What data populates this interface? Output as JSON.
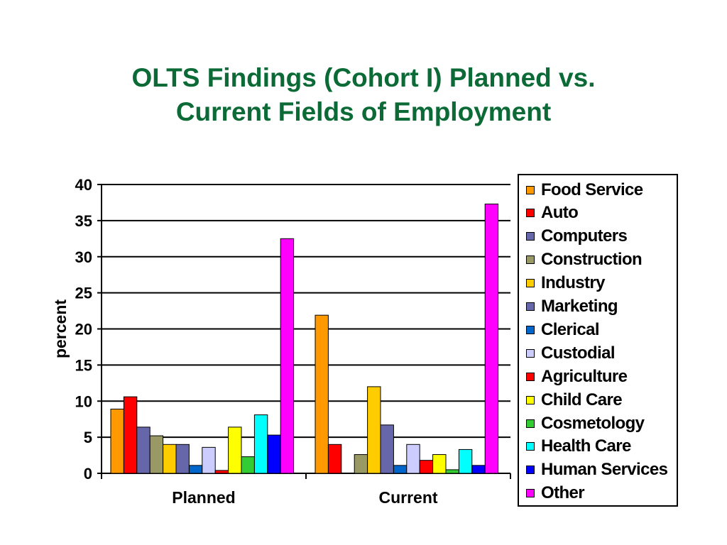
{
  "title": {
    "line1": "OLTS Findings (Cohort I) Planned vs.",
    "line2": "Current Fields of Employment"
  },
  "chart_data": {
    "type": "bar",
    "ylabel": "percent",
    "xlabel": "",
    "ylim": [
      0,
      40
    ],
    "yticks": [
      0,
      5,
      10,
      15,
      20,
      25,
      30,
      35,
      40
    ],
    "grid": true,
    "legend_position": "right",
    "categories": [
      "Planned",
      "Current"
    ],
    "series": [
      {
        "name": "Food Service",
        "color": "#ff9900",
        "values": [
          8.9,
          21.9
        ]
      },
      {
        "name": "Auto",
        "color": "#ff0000",
        "values": [
          10.6,
          4.0
        ]
      },
      {
        "name": "Computers",
        "color": "#6666aa",
        "values": [
          6.4,
          0
        ]
      },
      {
        "name": "Construction",
        "color": "#999966",
        "values": [
          5.2,
          2.6
        ]
      },
      {
        "name": "Industry",
        "color": "#ffcc00",
        "values": [
          4.0,
          12.0
        ]
      },
      {
        "name": "Marketing",
        "color": "#6666aa",
        "values": [
          4.0,
          6.7
        ]
      },
      {
        "name": "Clerical",
        "color": "#0066cc",
        "values": [
          1.1,
          1.1
        ]
      },
      {
        "name": "Custodial",
        "color": "#ccccff",
        "values": [
          3.6,
          4.0
        ]
      },
      {
        "name": "Agriculture",
        "color": "#ff0000",
        "values": [
          0.4,
          1.8
        ]
      },
      {
        "name": "Child Care",
        "color": "#ffff00",
        "values": [
          6.4,
          2.6
        ]
      },
      {
        "name": "Cosmetology",
        "color": "#33cc33",
        "values": [
          2.3,
          0.5
        ]
      },
      {
        "name": "Health Care",
        "color": "#00ffff",
        "values": [
          8.1,
          3.3
        ]
      },
      {
        "name": "Human Services",
        "color": "#0000ff",
        "values": [
          5.3,
          1.1
        ]
      },
      {
        "name": "Other",
        "color": "#ff00ff",
        "values": [
          32.5,
          37.3
        ]
      }
    ]
  }
}
